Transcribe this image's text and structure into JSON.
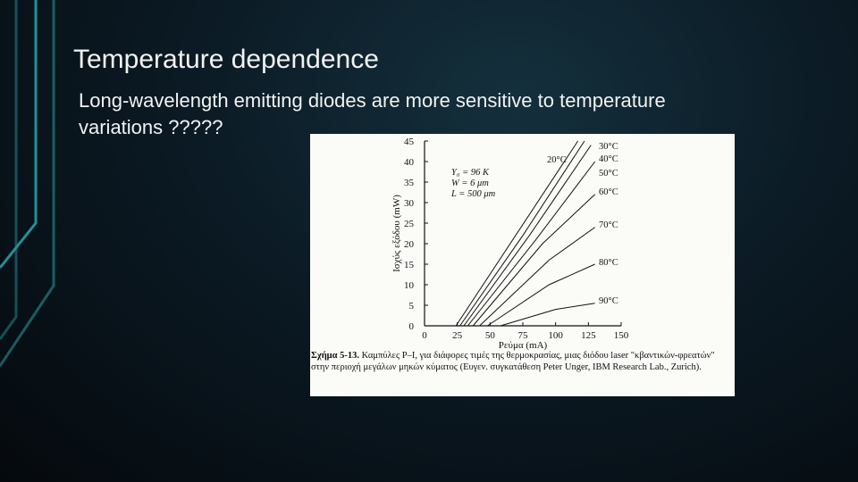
{
  "header": {
    "title": "Temperature dependence"
  },
  "body": {
    "lines": [
      "Long-wavelength emitting diodes are more sensitive to temperature",
      "variations ?????"
    ]
  },
  "figure": {
    "y_label": "Ισχύς εξόδου (mW)",
    "x_label": "Ρεύμα (mA)",
    "xlim": [
      0,
      150
    ],
    "ylim": [
      0,
      45
    ],
    "xticks": [
      0,
      25,
      50,
      75,
      100,
      125,
      150
    ],
    "yticks": [
      0,
      5,
      10,
      15,
      20,
      25,
      30,
      35,
      40,
      45
    ],
    "parameters": [
      "Y₀ = 96 K",
      "W = 6 μm",
      "L = 500 μm"
    ],
    "curves": [
      {
        "label": "20°C",
        "x": [
          24,
          117
        ],
        "y": [
          0,
          45
        ]
      },
      {
        "label": "30°C",
        "x": [
          27,
          75,
          122
        ],
        "y": [
          0,
          22,
          45
        ]
      },
      {
        "label": "40°C",
        "x": [
          30,
          80,
          127
        ],
        "y": [
          0,
          22,
          44
        ]
      },
      {
        "label": "50°C",
        "x": [
          33,
          85,
          130
        ],
        "y": [
          0,
          21,
          40
        ]
      },
      {
        "label": "60°C",
        "x": [
          37,
          90,
          130
        ],
        "y": [
          0,
          20,
          32
        ]
      },
      {
        "label": "70°C",
        "x": [
          42,
          95,
          130
        ],
        "y": [
          0,
          16,
          24
        ]
      },
      {
        "label": "80°C",
        "x": [
          48,
          95,
          130
        ],
        "y": [
          0,
          10,
          15
        ]
      },
      {
        "label": "90°C",
        "x": [
          58,
          100,
          130
        ],
        "y": [
          0,
          4,
          5.5
        ]
      }
    ],
    "caption_label": "Σχήμα 5-13.",
    "caption": "Καμπύλες P–I, για διάφορες τιμές της θερμοκρασίας, μιας διόδου laser \"κβαντικών-φρεατών\" στην περιοχή μεγάλων μηκών κύματος (Ευγεν. συγκατάθεση Peter Unger, IBM Research Lab., Zurich)."
  }
}
